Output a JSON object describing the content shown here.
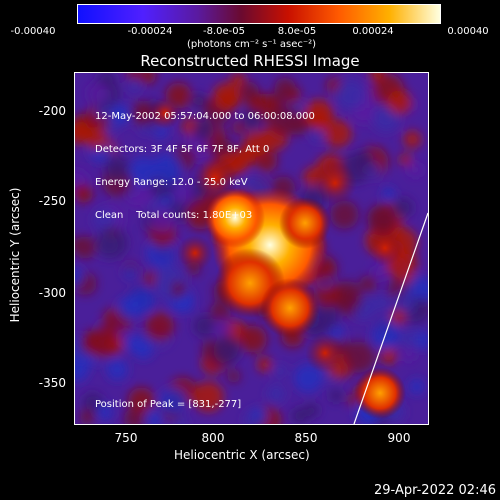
{
  "colorbar": {
    "ticks": [
      "-0.00040",
      "-0.00024",
      "-8.0e-05",
      "8.0e-05",
      "0.00024",
      "0.00040"
    ],
    "units_text": "(photons cm⁻² s⁻¹ asec⁻²)"
  },
  "title": "Reconstructed RHESSI Image",
  "info_lines": [
    "12-May-2002 05:57:04.000 to 06:00:08.000",
    "Detectors: 3F 4F 5F 6F 7F 8F, Att 0",
    "Energy Range: 12.0 - 25.0 keV",
    "Clean    Total counts: 1.80E+03"
  ],
  "peak_text": "Position of Peak = [831,-277]",
  "axes": {
    "xlabel": "Heliocentric X (arcsec)",
    "ylabel": "Heliocentric Y (arcsec)",
    "xticks": [
      "750",
      "800",
      "850",
      "900"
    ],
    "yticks": [
      "-200",
      "-250",
      "-300",
      "-350"
    ]
  },
  "timestamp": "29-Apr-2022 02:46",
  "colors": {
    "background": "#000000",
    "low": "#1010ff",
    "mid": "#5a1aa0",
    "high": "#ff5a00",
    "peak": "#ffffe0"
  }
}
